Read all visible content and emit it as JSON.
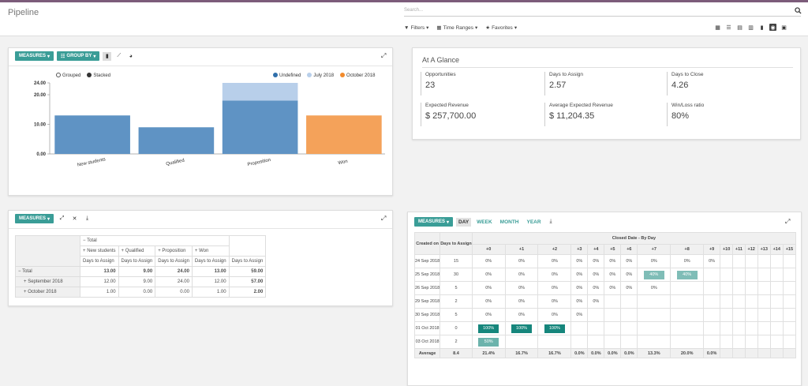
{
  "header": {
    "title": "Pipeline",
    "search_placeholder": "Search...",
    "filters": [
      "Filters",
      "Time Ranges",
      "Favorites"
    ]
  },
  "graph": {
    "measures": "MEASURES",
    "group_by": "GROUP BY",
    "legend_left": [
      "Grouped",
      "Stacked"
    ],
    "colors": {
      "undefined": "#5f93c4",
      "july": "#b8cfea",
      "october": "#f4a25a"
    }
  },
  "chart_data": {
    "type": "bar",
    "categories": [
      "New students",
      "Qualified",
      "Proposition",
      "Won"
    ],
    "series": [
      {
        "name": "Undefined",
        "values": [
          13,
          9,
          18,
          0
        ]
      },
      {
        "name": "July 2018",
        "values": [
          0,
          0,
          6,
          0
        ]
      },
      {
        "name": "October 2018",
        "values": [
          0,
          0,
          0,
          13
        ]
      }
    ],
    "ylim": [
      0,
      24
    ],
    "yticks": [
      "0.00",
      "10.00",
      "20.00",
      "24.00"
    ],
    "ytick_values": [
      0,
      10,
      20,
      24
    ],
    "legend": "top-right"
  },
  "glance": {
    "title": "At A Glance",
    "cells": [
      {
        "label": "Opportunities",
        "value": "23"
      },
      {
        "label": "Days to Assign",
        "value": "2.57"
      },
      {
        "label": "Days to Close",
        "value": "4.26"
      },
      {
        "label": "Expected Revenue",
        "value": "$ 257,700.00"
      },
      {
        "label": "Average Expected Revenue",
        "value": "$ 11,204.35"
      },
      {
        "label": "Win/Loss ratio",
        "value": "80%"
      }
    ]
  },
  "pivot": {
    "measures": "MEASURES",
    "total_label": "Total",
    "col_groups": [
      "New students",
      "Qualified",
      "Proposition",
      "Won"
    ],
    "measure_label": "Days to Assign",
    "rows": [
      {
        "label": "Total",
        "values": [
          "13.00",
          "9.00",
          "24.00",
          "13.00",
          "59.00"
        ]
      },
      {
        "label": "September 2018",
        "values": [
          "12.00",
          "9.00",
          "24.00",
          "12.00",
          "57.00"
        ]
      },
      {
        "label": "October 2018",
        "values": [
          "1.00",
          "0.00",
          "0.00",
          "1.00",
          "2.00"
        ]
      }
    ]
  },
  "cohort": {
    "measures": "MEASURES",
    "tabs": [
      "DAY",
      "WEEK",
      "MONTH",
      "YEAR"
    ],
    "created_on": "Created on",
    "days_to_assign": "Days to Assign",
    "closed_header": "Closed Date - By Day",
    "columns": [
      "+0",
      "+1",
      "+2",
      "+3",
      "+4",
      "+5",
      "+6",
      "+7",
      "+8",
      "+9",
      "+10",
      "+11",
      "+12",
      "+13",
      "+14",
      "+15"
    ],
    "rows": [
      {
        "date": "24 Sep 2018",
        "assign": "15",
        "cells": [
          "0%",
          "0%",
          "0%",
          "0%",
          "0%",
          "0%",
          "0%",
          "0%",
          "0%",
          "0%"
        ]
      },
      {
        "date": "25 Sep 2018",
        "assign": "30",
        "cells": [
          "0%",
          "0%",
          "0%",
          "0%",
          "0%",
          "0%",
          "0%",
          "40%",
          "40%"
        ]
      },
      {
        "date": "26 Sep 2018",
        "assign": "5",
        "cells": [
          "0%",
          "0%",
          "0%",
          "0%",
          "0%",
          "0%",
          "0%",
          "0%"
        ]
      },
      {
        "date": "29 Sep 2018",
        "assign": "2",
        "cells": [
          "0%",
          "0%",
          "0%",
          "0%",
          "0%"
        ]
      },
      {
        "date": "30 Sep 2018",
        "assign": "5",
        "cells": [
          "0%",
          "0%",
          "0%",
          "0%"
        ]
      },
      {
        "date": "01 Oct 2018",
        "assign": "0",
        "cells": [
          "100%",
          "100%",
          "100%"
        ]
      },
      {
        "date": "03 Oct 2018",
        "assign": "2",
        "cells": [
          "50%"
        ]
      }
    ],
    "average": {
      "label": "Average",
      "assign": "8.4",
      "cells": [
        "21.4%",
        "16.7%",
        "16.7%",
        "0.0%",
        "0.0%",
        "0.0%",
        "0.0%",
        "13.3%",
        "20.0%",
        "0.0%"
      ]
    }
  }
}
